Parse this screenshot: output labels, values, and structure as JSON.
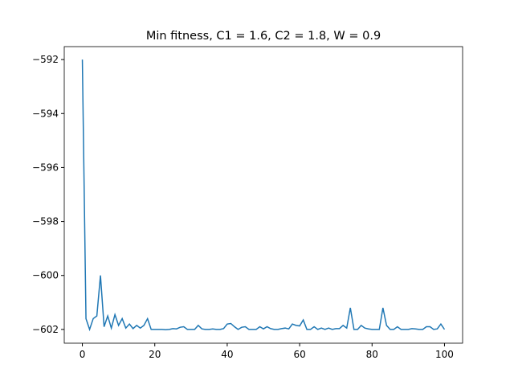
{
  "chart_data": {
    "type": "line",
    "title": "Min fitness, C1 = 1.6, C2 = 1.8, W = 0.9",
    "x": [
      0,
      1,
      2,
      3,
      4,
      5,
      6,
      7,
      8,
      9,
      10,
      11,
      12,
      13,
      14,
      15,
      16,
      17,
      18,
      19,
      20,
      21,
      22,
      23,
      24,
      25,
      26,
      27,
      28,
      29,
      30,
      31,
      32,
      33,
      34,
      35,
      36,
      37,
      38,
      39,
      40,
      41,
      42,
      43,
      44,
      45,
      46,
      47,
      48,
      49,
      50,
      51,
      52,
      53,
      54,
      55,
      56,
      57,
      58,
      59,
      60,
      61,
      62,
      63,
      64,
      65,
      66,
      67,
      68,
      69,
      70,
      71,
      72,
      73,
      74,
      75,
      76,
      77,
      78,
      79,
      80,
      81,
      82,
      83,
      84,
      85,
      86,
      87,
      88,
      89,
      90,
      91,
      92,
      93,
      94,
      95,
      96,
      97,
      98,
      99,
      100
    ],
    "series": [
      {
        "color": "#1f77b4",
        "values": [
          -592,
          -601.6,
          -602,
          -601.6,
          -601.5,
          -600,
          -601.9,
          -601.5,
          -601.95,
          -601.45,
          -601.85,
          -601.6,
          -601.95,
          -601.8,
          -601.97,
          -601.85,
          -601.95,
          -601.85,
          -601.6,
          -602,
          -602,
          -602,
          -602,
          -602.01,
          -602,
          -601.97,
          -601.98,
          -601.92,
          -601.9,
          -602,
          -602,
          -602,
          -601.85,
          -601.98,
          -602,
          -602,
          -601.98,
          -602,
          -602,
          -601.97,
          -601.8,
          -601.78,
          -601.9,
          -602,
          -601.92,
          -601.9,
          -602,
          -602,
          -602,
          -601.9,
          -601.98,
          -601.9,
          -601.97,
          -602,
          -602,
          -601.97,
          -601.95,
          -601.98,
          -601.8,
          -601.85,
          -601.87,
          -601.65,
          -602,
          -602,
          -601.9,
          -602,
          -601.95,
          -602,
          -601.95,
          -602,
          -601.97,
          -601.97,
          -601.85,
          -601.95,
          -601.2,
          -602,
          -602,
          -601.85,
          -601.95,
          -601.98,
          -602,
          -602,
          -602,
          -601.2,
          -601.85,
          -602,
          -602,
          -601.9,
          -602,
          -602,
          -602,
          -601.97,
          -601.98,
          -602,
          -602,
          -601.9,
          -601.9,
          -602,
          -601.98,
          -601.8,
          -602
        ]
      }
    ],
    "xlim": [
      -5,
      105
    ],
    "ylim": [
      -602.51,
      -591.52
    ],
    "xticks": [
      0,
      20,
      40,
      60,
      80,
      100
    ],
    "yticks": [
      {
        "value": -592,
        "label": "−592"
      },
      {
        "value": -594,
        "label": "−594"
      },
      {
        "value": -596,
        "label": "−596"
      },
      {
        "value": -598,
        "label": "−598"
      },
      {
        "value": -600,
        "label": "−600"
      },
      {
        "value": -602,
        "label": "−602"
      }
    ]
  }
}
